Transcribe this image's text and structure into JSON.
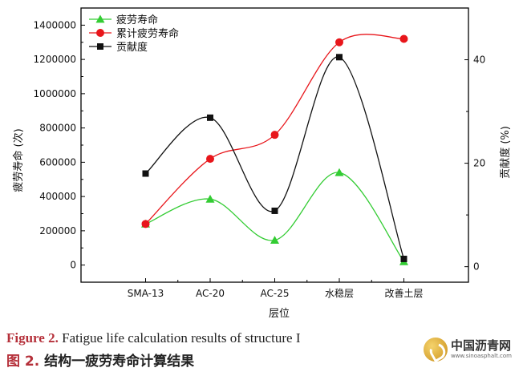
{
  "chart_data": {
    "type": "line",
    "categories": [
      "SMA-13",
      "AC-20",
      "AC-25",
      "水稳层",
      "改善土层"
    ],
    "series": [
      {
        "name": "疲劳寿命",
        "axis": "left",
        "marker": "triangle",
        "color": "#33cc33",
        "values": [
          240000,
          385000,
          145000,
          540000,
          20000
        ]
      },
      {
        "name": "累计疲劳寿命",
        "axis": "left",
        "marker": "circle",
        "color": "#e8161b",
        "values": [
          240000,
          620000,
          760000,
          1300000,
          1320000
        ]
      },
      {
        "name": "贡献度",
        "axis": "right",
        "marker": "square",
        "color": "#111111",
        "values": [
          18.0,
          28.8,
          10.8,
          40.5,
          1.5
        ]
      }
    ],
    "xlabel": "层位",
    "ylabel_left": "疲劳寿命 (次)",
    "ylabel_right": "贡献度 (%)",
    "ylim_left": [
      -100000,
      1500000
    ],
    "ylim_right": [
      -3.0,
      50
    ],
    "yticks_left": [
      "0",
      "200000",
      "400000",
      "600000",
      "800000",
      "1000000",
      "1200000",
      "1400000"
    ],
    "yticks_right": [
      "0",
      "20",
      "40"
    ],
    "legend_position": "top-left",
    "grid": false
  },
  "caption": {
    "en_label": "Figure 2.",
    "en_text": " Fatigue life calculation results of structure I",
    "zh_label": "图 2.",
    "zh_text": "  结构一疲劳寿命计算结果"
  },
  "watermark": {
    "name": "中国沥青网",
    "url": "www.sinoasphalt.com"
  }
}
